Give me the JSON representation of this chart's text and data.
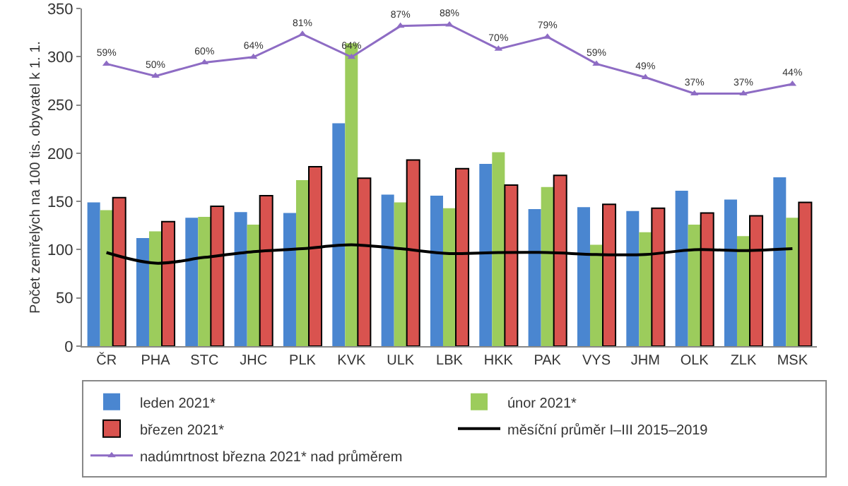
{
  "chart_data": {
    "type": "bar",
    "ylabel": "Počet zemřelých na 100 tis. obyvatel k 1. 1.",
    "categories": [
      "ČR",
      "PHA",
      "STC",
      "JHC",
      "PLK",
      "KVK",
      "ULK",
      "LBK",
      "HKK",
      "PAK",
      "VYS",
      "JHM",
      "OLK",
      "ZLK",
      "MSK"
    ],
    "series": [
      {
        "name": "leden 2021*",
        "color": "#4a86d0",
        "values": [
          149,
          112,
          133,
          139,
          138,
          231,
          157,
          156,
          189,
          142,
          144,
          140,
          161,
          152,
          175
        ]
      },
      {
        "name": "únor 2021*",
        "color": "#9ccc5c",
        "values": [
          141,
          119,
          134,
          126,
          172,
          314,
          149,
          143,
          201,
          165,
          105,
          118,
          126,
          114,
          133
        ]
      },
      {
        "name": "březen 2021*",
        "color": "#d9534f",
        "values": [
          154,
          129,
          145,
          156,
          186,
          174,
          193,
          184,
          167,
          177,
          147,
          143,
          138,
          135,
          149
        ]
      },
      {
        "name": "měsíční průměr I–III 2015–2019",
        "type": "line",
        "color": "#000000",
        "values": [
          97,
          86,
          92,
          98,
          101,
          105,
          101,
          96,
          97,
          97,
          95,
          95,
          100,
          99,
          101
        ]
      },
      {
        "name": "nadúmrtnost března 2021* nad průměrem",
        "type": "line",
        "axis": "y2",
        "color": "#8e6cc4",
        "marker": "triangle",
        "values": [
          59,
          50,
          60,
          64,
          81,
          64,
          87,
          88,
          70,
          79,
          59,
          49,
          37,
          37,
          44
        ],
        "value_labels": [
          "59%",
          "50%",
          "60%",
          "64%",
          "81%",
          "64%",
          "87%",
          "88%",
          "70%",
          "79%",
          "59%",
          "49%",
          "37%",
          "37%",
          "44%"
        ]
      }
    ],
    "ylim": [
      0,
      350
    ],
    "yticks": [
      0,
      50,
      100,
      150,
      200,
      250,
      300,
      350
    ],
    "y2lim": [
      -150,
      100
    ],
    "grid": false,
    "legend": "bottom"
  }
}
